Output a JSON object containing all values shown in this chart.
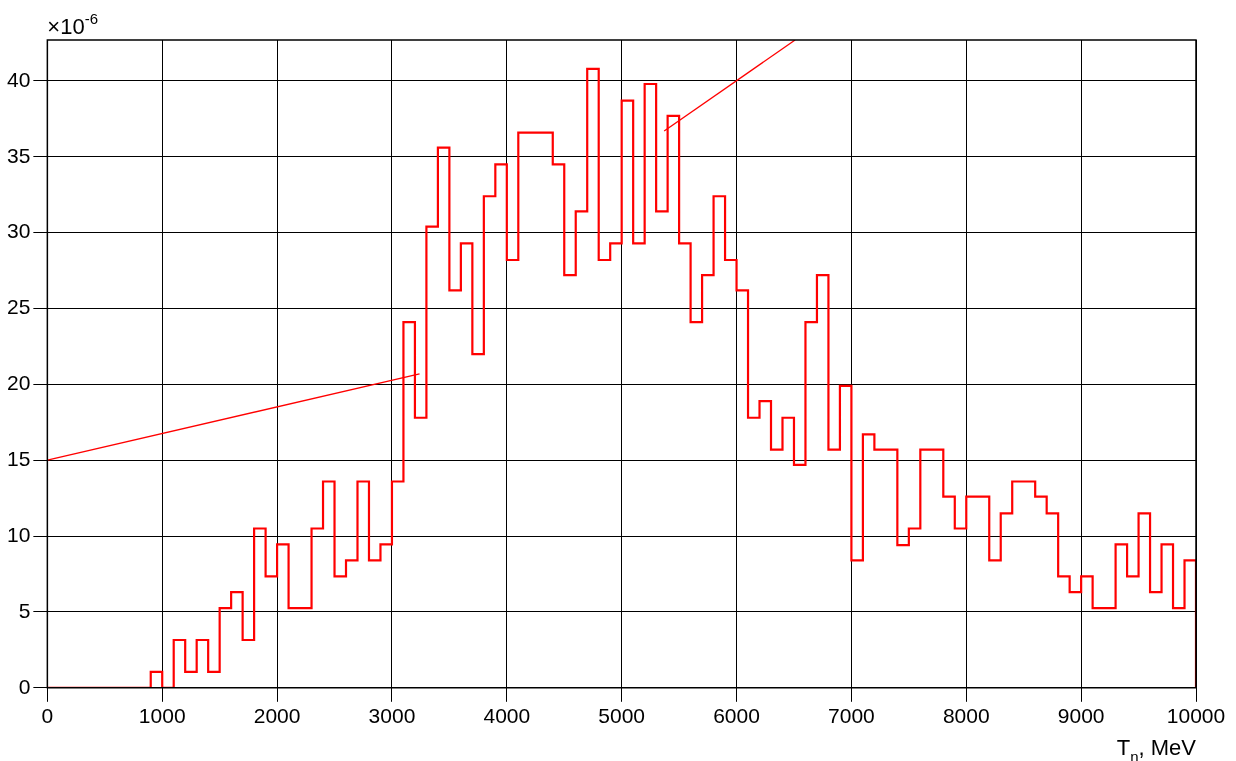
{
  "chart_data": {
    "type": "histogram",
    "xlabel": "T$_{n}$, MeV",
    "annotations": [
      "×10$^{-6}$"
    ],
    "bins": [
      0,
      100,
      200,
      300,
      400,
      500,
      600,
      700,
      800,
      900,
      1000,
      1100,
      1200,
      1300,
      1400,
      1500,
      1600,
      1700,
      1800,
      1900,
      2000,
      2100,
      2200,
      2300,
      2400,
      2500,
      2600,
      2700,
      2800,
      2900,
      3000,
      3100,
      3200,
      3300,
      3400,
      3500,
      3600,
      3700,
      3800,
      3900,
      4000,
      4100,
      4200,
      4300,
      4400,
      4500,
      4600,
      4700,
      4800,
      4900,
      5000,
      5100,
      5200,
      5300,
      5400,
      5500,
      5600,
      5700,
      5800,
      5900,
      6000,
      6100,
      6200,
      6300,
      6400,
      6500,
      6600,
      6700,
      6800,
      6900,
      7000,
      7100,
      7200,
      7300,
      7400,
      7500,
      7600,
      7700,
      7800,
      7900,
      8000,
      8100,
      8200,
      8300,
      8400,
      8500,
      8600,
      8700,
      8800,
      8900,
      9000,
      9100,
      9200,
      9300,
      9400,
      9500,
      9600,
      9700,
      9800,
      9900,
      10000
    ],
    "values": [
      0,
      0,
      0,
      0,
      0,
      0,
      0,
      0,
      0,
      1.05,
      0,
      3.15,
      1.05,
      3.15,
      1.05,
      5.25,
      6.3,
      3.15,
      10.5,
      7.35,
      9.45,
      5.25,
      5.25,
      10.5,
      13.6,
      7.35,
      8.4,
      13.6,
      8.4,
      9.45,
      13.6,
      24.1,
      17.8,
      30.4,
      35.6,
      26.2,
      29.3,
      22.0,
      32.4,
      34.5,
      28.2,
      36.6,
      36.6,
      36.6,
      34.5,
      27.2,
      31.4,
      40.8,
      28.2,
      29.3,
      38.7,
      29.3,
      39.8,
      31.4,
      37.7,
      29.3,
      24.1,
      27.2,
      32.4,
      28.2,
      26.2,
      17.8,
      18.9,
      15.7,
      17.8,
      14.7,
      24.1,
      27.2,
      15.7,
      19.9,
      8.4,
      16.7,
      15.7,
      15.7,
      9.4,
      10.5,
      15.7,
      15.7,
      12.6,
      10.5,
      12.6,
      12.6,
      8.4,
      11.5,
      13.6,
      13.6,
      12.6,
      11.5,
      7.35,
      6.3,
      7.35,
      5.25,
      5.25,
      9.45,
      7.35,
      11.5,
      6.3,
      9.45,
      5.25,
      8.4
    ],
    "color": "#ff0000",
    "series": [
      {
        "type": "line",
        "color": "#ff0000",
        "x": [
          0,
          3240
        ],
        "values": [
          15.0,
          20.7
        ]
      },
      {
        "type": "line",
        "color": "#ff0000",
        "x": [
          5370,
          6510
        ],
        "values": [
          36.7,
          42.7
        ]
      }
    ],
    "xlim": [
      0,
      10000
    ],
    "xticks": [
      0,
      1000,
      2000,
      3000,
      4000,
      5000,
      6000,
      7000,
      8000,
      9000,
      10000
    ],
    "ylim": [
      0,
      42.7
    ],
    "yticks": [
      0,
      5,
      10,
      15,
      20,
      25,
      30,
      35,
      40
    ],
    "grid": true,
    "legend": false
  }
}
